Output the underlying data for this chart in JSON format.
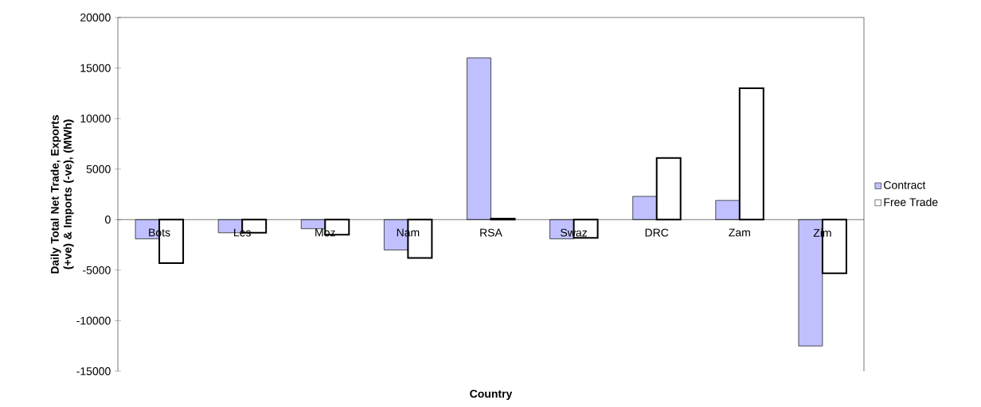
{
  "chart_data": {
    "type": "bar",
    "xlabel": "Country",
    "ylabel": "Daily Total Net Trade, Exports (+ve) & Imports (-ve), (MWh)",
    "categories": [
      "Bots",
      "Les",
      "Moz",
      "Nam",
      "RSA",
      "Swaz",
      "DRC",
      "Zam",
      "Zim"
    ],
    "series": [
      {
        "name": "Contract",
        "color": "#c0c0ff",
        "values": [
          -1900,
          -1300,
          -900,
          -3000,
          16000,
          -1900,
          2300,
          1900,
          -12500
        ]
      },
      {
        "name": "Free Trade",
        "color": "#ffffff",
        "values": [
          -4300,
          -1300,
          -1500,
          -3800,
          100,
          -1800,
          6100,
          13000,
          -5300
        ]
      }
    ],
    "ylim": [
      -15000,
      20000
    ],
    "yticks": [
      -15000,
      -10000,
      -5000,
      0,
      5000,
      10000,
      15000,
      20000
    ],
    "legend": "right",
    "grid": false
  }
}
